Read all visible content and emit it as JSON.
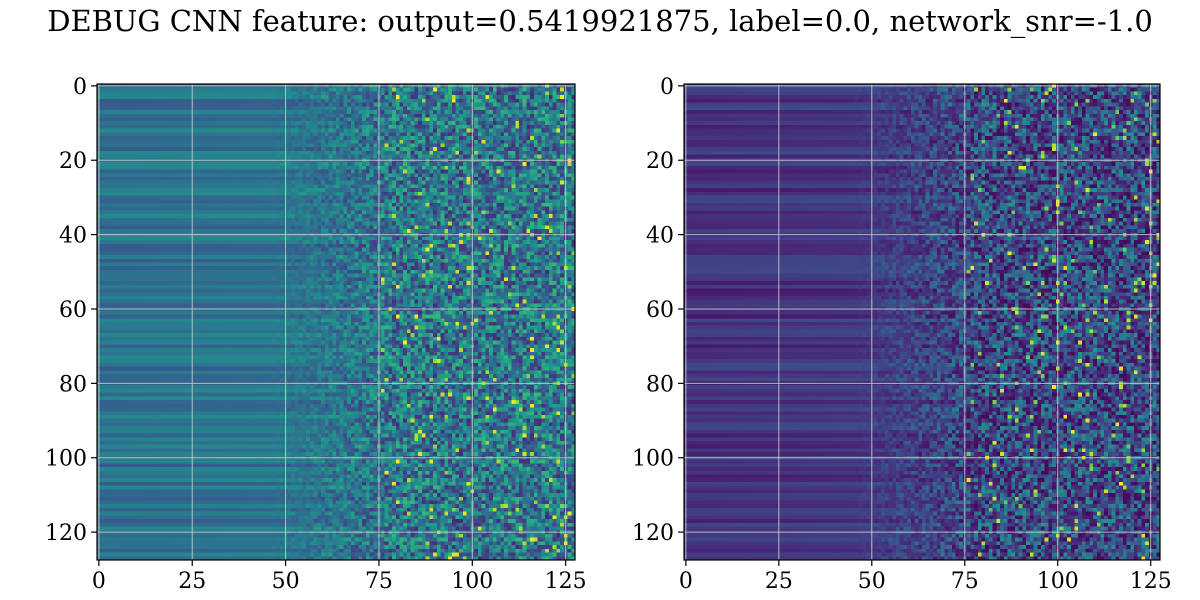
{
  "figure": {
    "title": "DEBUG CNN feature: output=0.5419921875, label=0.0, network_snr=-1.0"
  },
  "chart_data": [
    {
      "type": "heatmap",
      "title": "",
      "xlabel": "",
      "ylabel": "",
      "rows": 128,
      "cols": 128,
      "colormap": "viridis",
      "x_range": [
        0,
        127
      ],
      "y_range": [
        0,
        127
      ],
      "y_inverted": true,
      "grid": true,
      "x_ticks": [
        0,
        25,
        50,
        75,
        100,
        125
      ],
      "y_ticks": [
        0,
        20,
        40,
        60,
        80,
        100,
        120
      ],
      "pattern": "Columns 0-50 show smooth horizontal row bands (teal/blue, values ~0.25-0.45); columns 50-75 transition; columns 75-127 are noisy with sparse bright yellow-green pixels. Bright clusters near rows 10-12, 28-31 and 64-65.",
      "value_range": [
        0.0,
        1.0
      ]
    },
    {
      "type": "heatmap",
      "title": "",
      "xlabel": "",
      "ylabel": "",
      "rows": 128,
      "cols": 128,
      "colormap": "viridis",
      "x_range": [
        0,
        127
      ],
      "y_range": [
        0,
        127
      ],
      "y_inverted": true,
      "grid": true,
      "x_ticks": [
        0,
        25,
        50,
        75,
        100,
        125
      ],
      "y_ticks": [
        0,
        20,
        40,
        60,
        80,
        100,
        120
      ],
      "pattern": "Columns 0-50 show dark purple horizontal row bands (values ~0.05-0.2); columns 50-75 slightly brighter; columns 75-127 are noisy with many dark purple pixels and sparse bright yellow pixels. Bright points near rows 0, 17, 29, 43, 69, 82, 97, 103, 120.",
      "value_range": [
        0.0,
        1.0
      ]
    }
  ]
}
